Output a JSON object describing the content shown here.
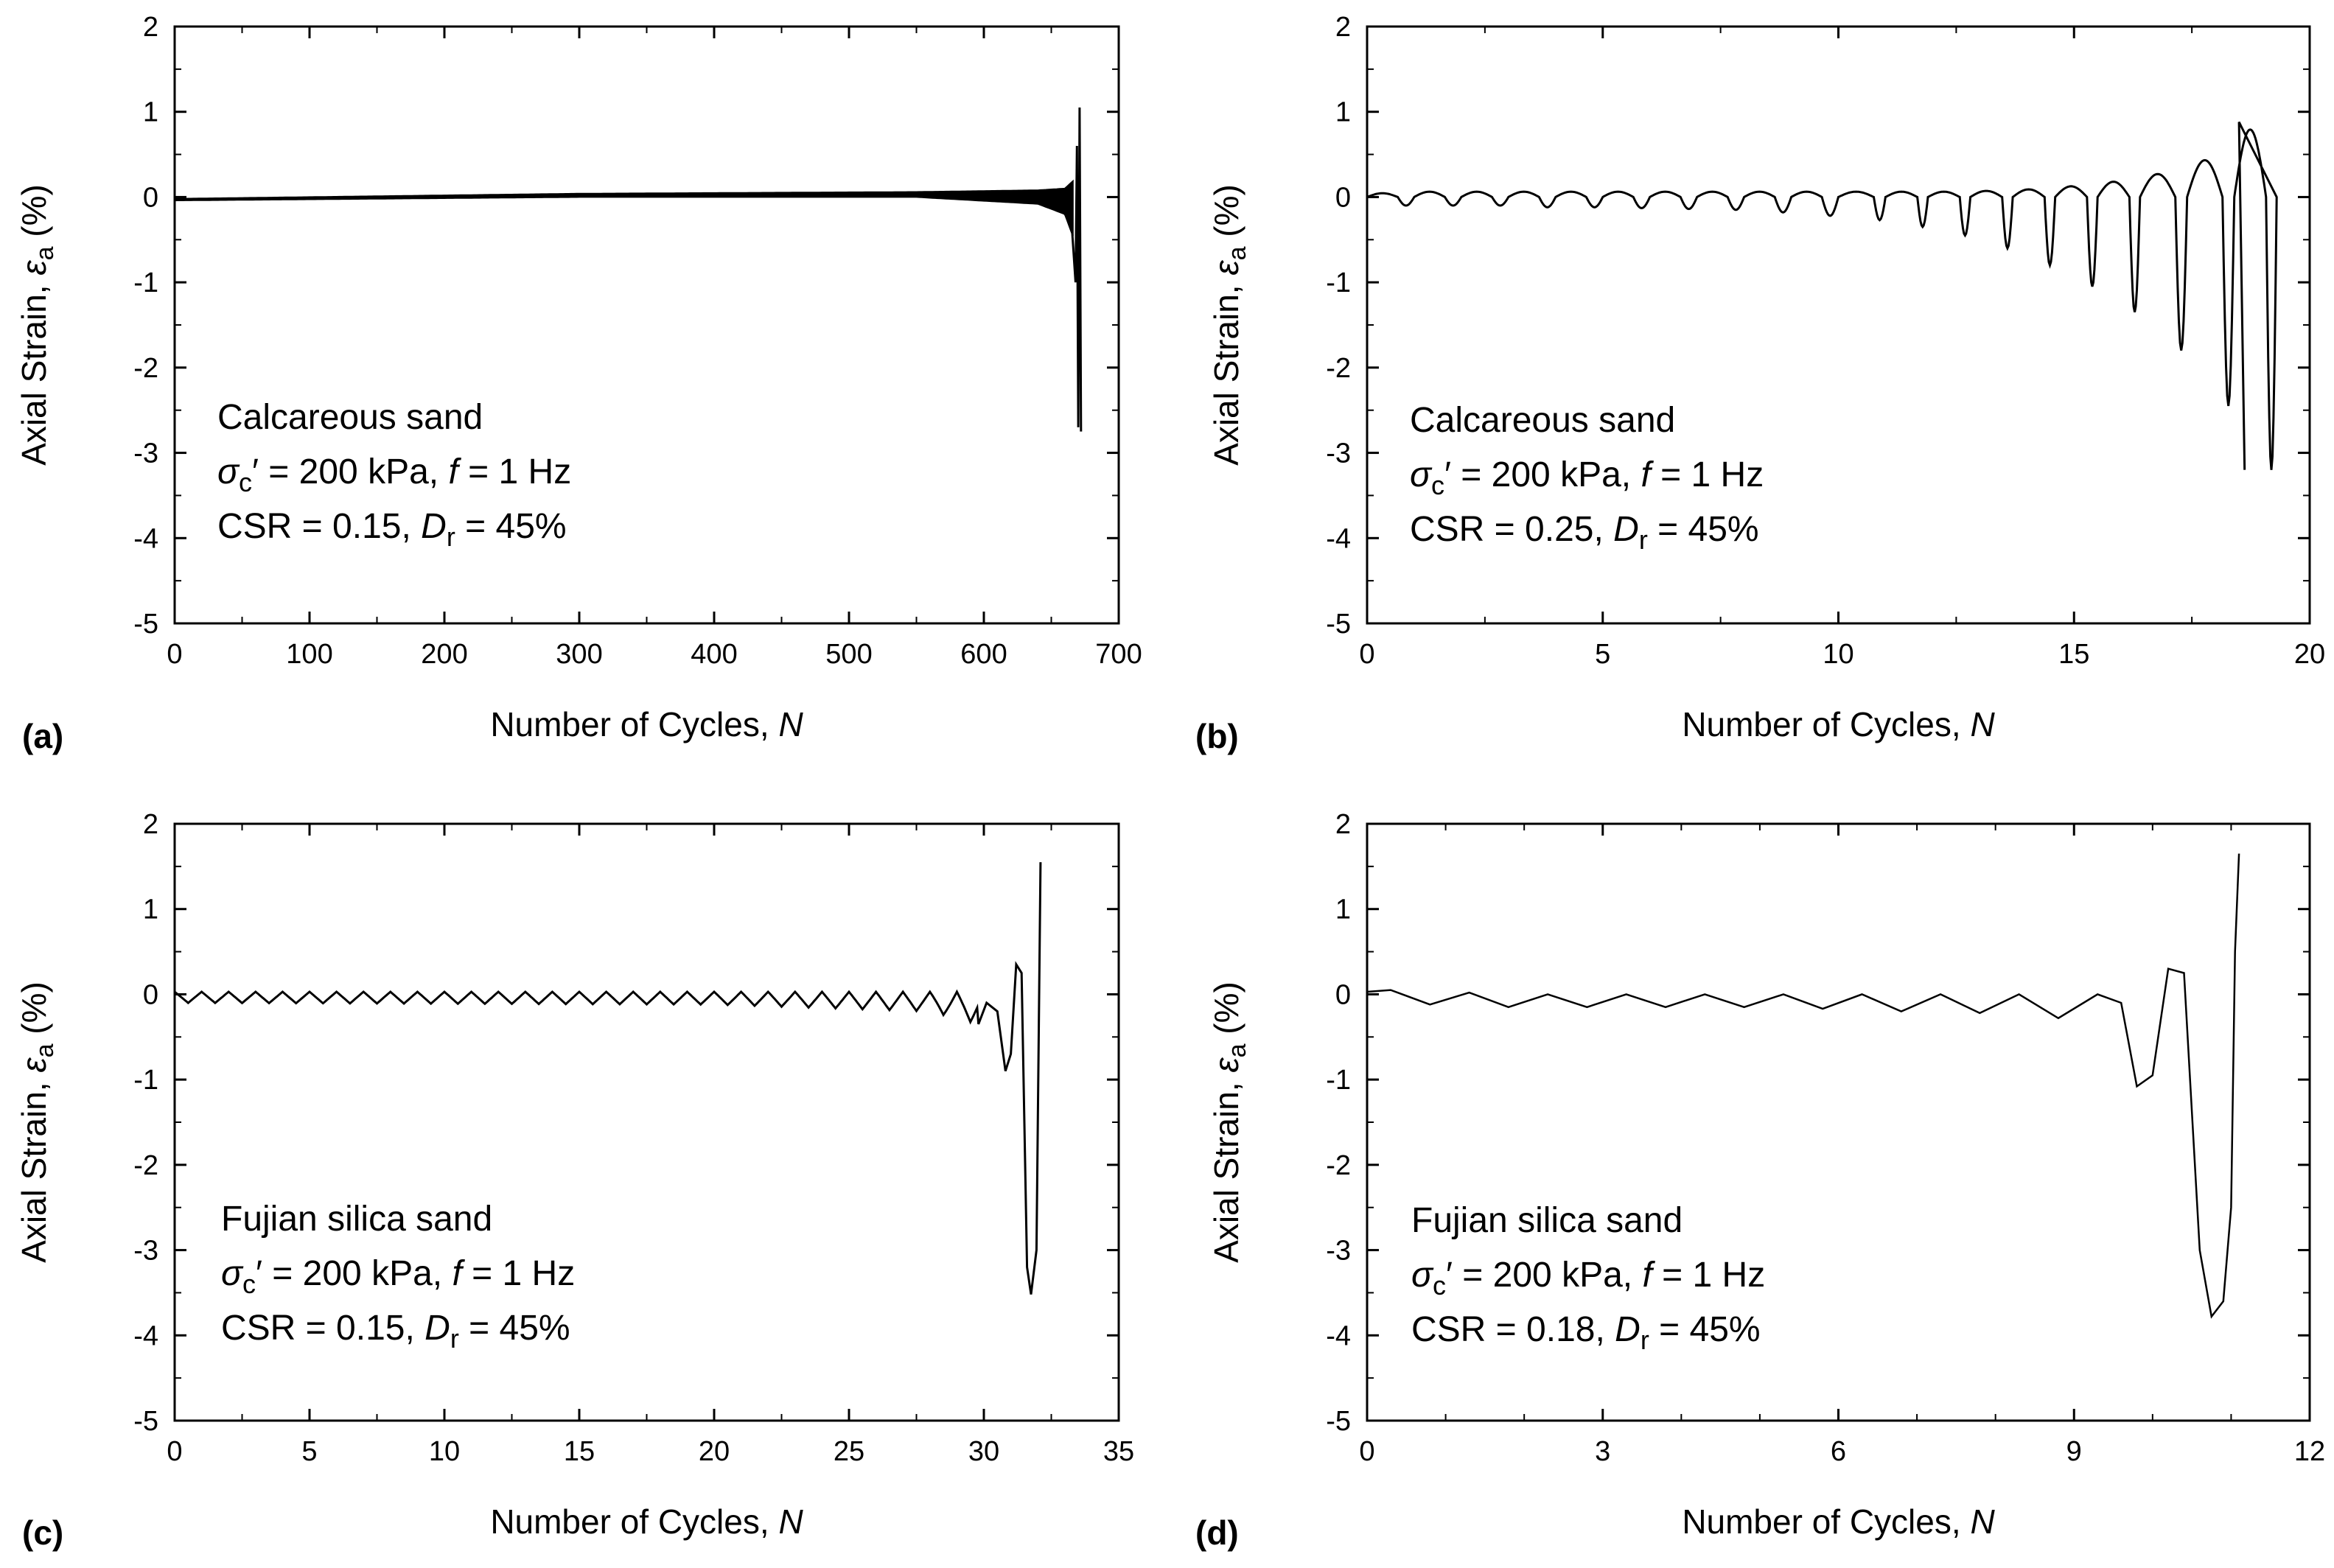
{
  "panels": [
    {
      "panel_label": "(a)",
      "ylabel_main": "Axial Strain, ",
      "ylabel_symbol": "ε",
      "ylabel_sub": "a",
      "ylabel_tail": " (%)",
      "xlabel_main": "Number of Cycles, ",
      "xlabel_var": "N",
      "annotation": {
        "material": "Calcareous sand",
        "sigma": "σ",
        "sigma_sub": "c",
        "line2_mid": "′ = 200 kPa, ",
        "f_var": "f",
        "line2_tail": " = 1 Hz",
        "csr": "CSR = 0.15, ",
        "d_var": "D",
        "d_sub": "r",
        "d_tail": " = 45%"
      }
    },
    {
      "panel_label": "(b)",
      "ylabel_main": "Axial Strain, ",
      "ylabel_symbol": "ε",
      "ylabel_sub": "a",
      "ylabel_tail": " (%)",
      "xlabel_main": "Number of Cycles, ",
      "xlabel_var": "N",
      "annotation": {
        "material": "Calcareous sand",
        "sigma": "σ",
        "sigma_sub": "c",
        "line2_mid": "′ = 200 kPa, ",
        "f_var": "f",
        "line2_tail": " = 1 Hz",
        "csr": "CSR = 0.25, ",
        "d_var": "D",
        "d_sub": "r",
        "d_tail": " = 45%"
      }
    },
    {
      "panel_label": "(c)",
      "ylabel_main": "Axial Strain, ",
      "ylabel_symbol": "ε",
      "ylabel_sub": "a",
      "ylabel_tail": " (%)",
      "xlabel_main": "Number of Cycles, ",
      "xlabel_var": "N",
      "annotation": {
        "material": "Fujian silica sand",
        "sigma": "σ",
        "sigma_sub": "c",
        "line2_mid": "′ = 200 kPa, ",
        "f_var": "f",
        "line2_tail": " = 1 Hz",
        "csr": "CSR = 0.15, ",
        "d_var": "D",
        "d_sub": "r",
        "d_tail": " = 45%"
      }
    },
    {
      "panel_label": "(d)",
      "ylabel_main": "Axial Strain, ",
      "ylabel_symbol": "ε",
      "ylabel_sub": "a",
      "ylabel_tail": " (%)",
      "xlabel_main": "Number of Cycles, ",
      "xlabel_var": "N",
      "annotation": {
        "material": "Fujian silica sand",
        "sigma": "σ",
        "sigma_sub": "c",
        "line2_mid": "′ = 200 kPa, ",
        "f_var": "f",
        "line2_tail": " = 1 Hz",
        "csr": "CSR = 0.18, ",
        "d_var": "D",
        "d_sub": "r",
        "d_tail": " = 45%"
      }
    }
  ],
  "chart_data": [
    {
      "type": "line",
      "title": "",
      "xlabel": "Number of Cycles, N",
      "ylabel": "Axial Strain, εa (%)",
      "xlim": [
        0,
        700
      ],
      "ylim": [
        -5,
        2
      ],
      "xticks": [
        0,
        100,
        200,
        300,
        400,
        500,
        600,
        700
      ],
      "yticks": [
        -5,
        -4,
        -3,
        -2,
        -1,
        0,
        1,
        2
      ],
      "grid": false,
      "series": [
        {
          "name": "Calcareous sand, CSR = 0.15",
          "dense_band": {
            "n_end": 670,
            "lower": [
              [
                0,
                -0.04
              ],
              [
                300,
                0.0
              ],
              [
                550,
                0.0
              ],
              [
                640,
                -0.08
              ],
              [
                660,
                -0.2
              ],
              [
                667,
                -0.5
              ]
            ],
            "upper": [
              [
                0,
                -0.02
              ],
              [
                300,
                0.04
              ],
              [
                550,
                0.06
              ],
              [
                640,
                0.08
              ],
              [
                660,
                0.1
              ],
              [
                667,
                0.2
              ]
            ]
          },
          "x": [
            0,
            300,
            600,
            650,
            665,
            668,
            669,
            670,
            671,
            672
          ],
          "y": [
            -0.03,
            0.02,
            0.03,
            0.0,
            -0.3,
            -1.0,
            0.6,
            -2.7,
            1.05,
            -2.75
          ]
        }
      ]
    },
    {
      "type": "line",
      "title": "",
      "xlabel": "Number of Cycles, N",
      "ylabel": "Axial Strain, εa (%)",
      "xlim": [
        0,
        20
      ],
      "ylim": [
        -5,
        2
      ],
      "xticks": [
        0,
        5,
        10,
        15,
        20
      ],
      "yticks": [
        -5,
        -4,
        -3,
        -2,
        -1,
        0,
        1,
        2
      ],
      "grid": false,
      "series": [
        {
          "name": "Calcareous sand, CSR = 0.25",
          "cycles": [
            {
              "n": 0.0,
              "max": 0.05,
              "min": -0.1
            },
            {
              "n": 1.0,
              "max": 0.07,
              "min": -0.1
            },
            {
              "n": 2.0,
              "max": 0.07,
              "min": -0.1
            },
            {
              "n": 3.0,
              "max": 0.07,
              "min": -0.12
            },
            {
              "n": 4.0,
              "max": 0.07,
              "min": -0.12
            },
            {
              "n": 5.0,
              "max": 0.07,
              "min": -0.13
            },
            {
              "n": 6.0,
              "max": 0.07,
              "min": -0.14
            },
            {
              "n": 7.0,
              "max": 0.07,
              "min": -0.15
            },
            {
              "n": 8.0,
              "max": 0.07,
              "min": -0.18
            },
            {
              "n": 9.0,
              "max": 0.07,
              "min": -0.22
            },
            {
              "n": 10.0,
              "max": 0.07,
              "min": -0.27
            },
            {
              "n": 11.0,
              "max": 0.07,
              "min": -0.35
            },
            {
              "n": 11.9,
              "max": 0.07,
              "min": -0.45
            },
            {
              "n": 12.8,
              "max": 0.08,
              "min": -0.6
            },
            {
              "n": 13.7,
              "max": 0.1,
              "min": -0.8
            },
            {
              "n": 14.6,
              "max": 0.14,
              "min": -1.05
            },
            {
              "n": 15.5,
              "max": 0.2,
              "min": -1.35
            },
            {
              "n": 16.4,
              "max": 0.3,
              "min": -1.8
            },
            {
              "n": 17.4,
              "max": 0.48,
              "min": -2.45
            },
            {
              "n": 18.4,
              "max": 0.88,
              "min": -3.2
            }
          ]
        }
      ]
    },
    {
      "type": "line",
      "title": "",
      "xlabel": "Number of Cycles, N",
      "ylabel": "Axial Strain, εa (%)",
      "xlim": [
        0,
        35
      ],
      "ylim": [
        -5,
        2
      ],
      "xticks": [
        0,
        5,
        10,
        15,
        20,
        25,
        30,
        35
      ],
      "yticks": [
        -5,
        -4,
        -3,
        -2,
        -1,
        0,
        1,
        2
      ],
      "grid": false,
      "series": [
        {
          "name": "Fujian silica sand, CSR = 0.15",
          "x": [
            0,
            5,
            10,
            15,
            20,
            25,
            28,
            29.5,
            30,
            30.5,
            30.9,
            31.2,
            31.5,
            31.7,
            31.9,
            32.1,
            32.2
          ],
          "y": [
            0.03,
            -0.03,
            -0.04,
            -0.05,
            -0.06,
            -0.08,
            -0.15,
            -0.3,
            -0.1,
            -0.2,
            -0.9,
            0.35,
            -0.3,
            -3.5,
            -3.0,
            1.55,
            1.55
          ],
          "cycle_envelope": {
            "max": 0.03,
            "min": [
              [
                0,
                -0.1
              ],
              [
                20,
                -0.12
              ],
              [
                28,
                -0.2
              ],
              [
                29.8,
                -0.35
              ]
            ]
          }
        }
      ]
    },
    {
      "type": "line",
      "title": "",
      "xlabel": "Number of Cycles, N",
      "ylabel": "Axial Strain, εa (%)",
      "xlim": [
        0,
        12
      ],
      "ylim": [
        -5,
        2
      ],
      "xticks": [
        0,
        3,
        6,
        9,
        12
      ],
      "yticks": [
        -5,
        -4,
        -3,
        -2,
        -1,
        0,
        1,
        2
      ],
      "grid": false,
      "series": [
        {
          "name": "Fujian silica sand, CSR = 0.18",
          "x": [
            0,
            0.3,
            0.8,
            1.3,
            1.8,
            2.3,
            2.8,
            3.3,
            3.8,
            4.3,
            4.8,
            5.3,
            5.8,
            6.3,
            6.8,
            7.3,
            7.8,
            8.3,
            8.8,
            9.3,
            9.6,
            9.8,
            10.0,
            10.2,
            10.4,
            10.6,
            10.75,
            10.9,
            11.0,
            11.05,
            11.1
          ],
          "y": [
            0.03,
            0.05,
            -0.12,
            0.02,
            -0.15,
            0.0,
            -0.15,
            0.0,
            -0.15,
            0.0,
            -0.15,
            0.0,
            -0.17,
            0.0,
            -0.2,
            0.0,
            -0.22,
            0.0,
            -0.28,
            0.0,
            -0.1,
            -1.08,
            -0.95,
            0.3,
            0.25,
            -3.0,
            -3.78,
            -3.6,
            -2.5,
            0.5,
            1.65
          ]
        }
      ]
    }
  ]
}
